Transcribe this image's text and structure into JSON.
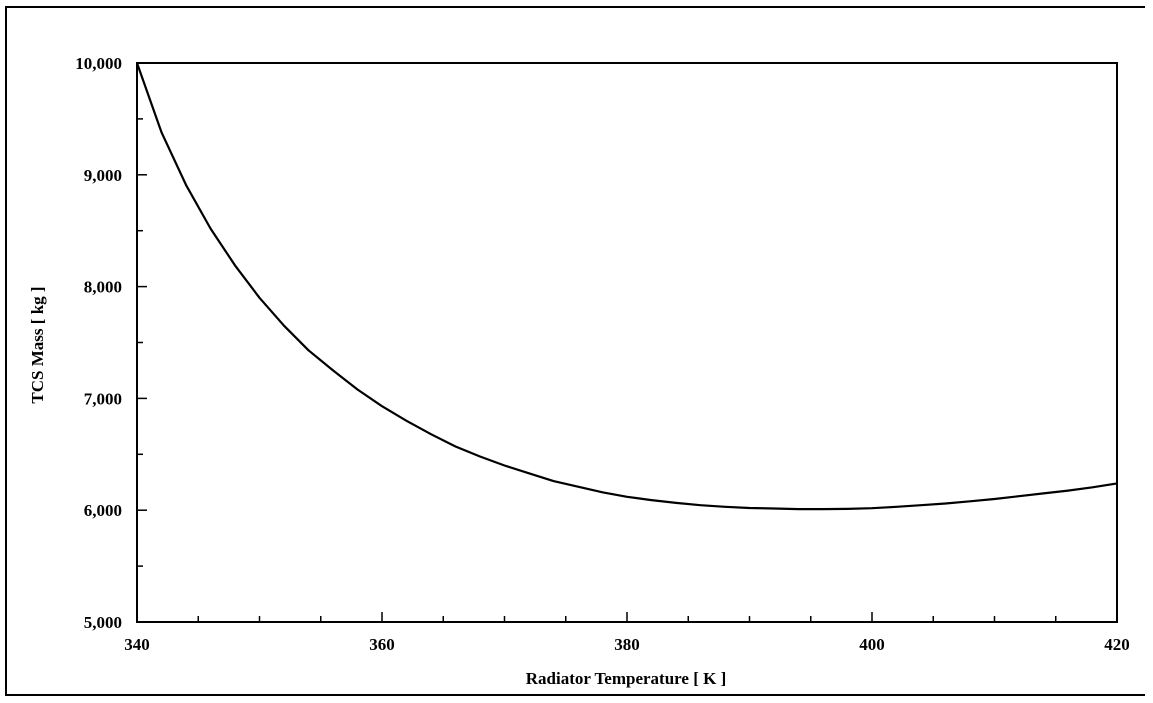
{
  "chart_data": {
    "type": "line",
    "title": "",
    "xlabel": "Radiator Temperature [ K ]",
    "ylabel": "TCS Mass [ kg ]",
    "xlim": [
      340,
      420
    ],
    "ylim": [
      5000,
      10000
    ],
    "x_ticks": [
      340,
      360,
      380,
      400,
      420
    ],
    "x_tick_labels": [
      "340",
      "360",
      "380",
      "400",
      "420"
    ],
    "y_ticks": [
      5000,
      6000,
      7000,
      8000,
      9000,
      10000
    ],
    "y_tick_labels": [
      "5,000",
      "6,000",
      "7,000",
      "8,000",
      "9,000",
      "10,000"
    ],
    "x_minor_step": 5,
    "y_minor_step": 500,
    "grid": false,
    "line_color": "#000000",
    "series": [
      {
        "x": [
          340,
          342,
          344,
          346,
          348,
          350,
          352,
          354,
          356,
          358,
          360,
          362,
          364,
          366,
          368,
          370,
          372,
          374,
          376,
          378,
          380,
          382,
          384,
          386,
          388,
          390,
          392,
          394,
          396,
          398,
          400,
          402,
          404,
          406,
          408,
          410,
          412,
          414,
          416,
          418,
          420
        ],
        "values": [
          10000,
          9380,
          8910,
          8520,
          8190,
          7900,
          7650,
          7430,
          7250,
          7080,
          6930,
          6800,
          6680,
          6570,
          6480,
          6400,
          6330,
          6260,
          6210,
          6160,
          6120,
          6090,
          6065,
          6045,
          6030,
          6020,
          6015,
          6010,
          6010,
          6012,
          6018,
          6030,
          6045,
          6060,
          6080,
          6100,
          6125,
          6150,
          6175,
          6205,
          6240
        ]
      }
    ]
  }
}
